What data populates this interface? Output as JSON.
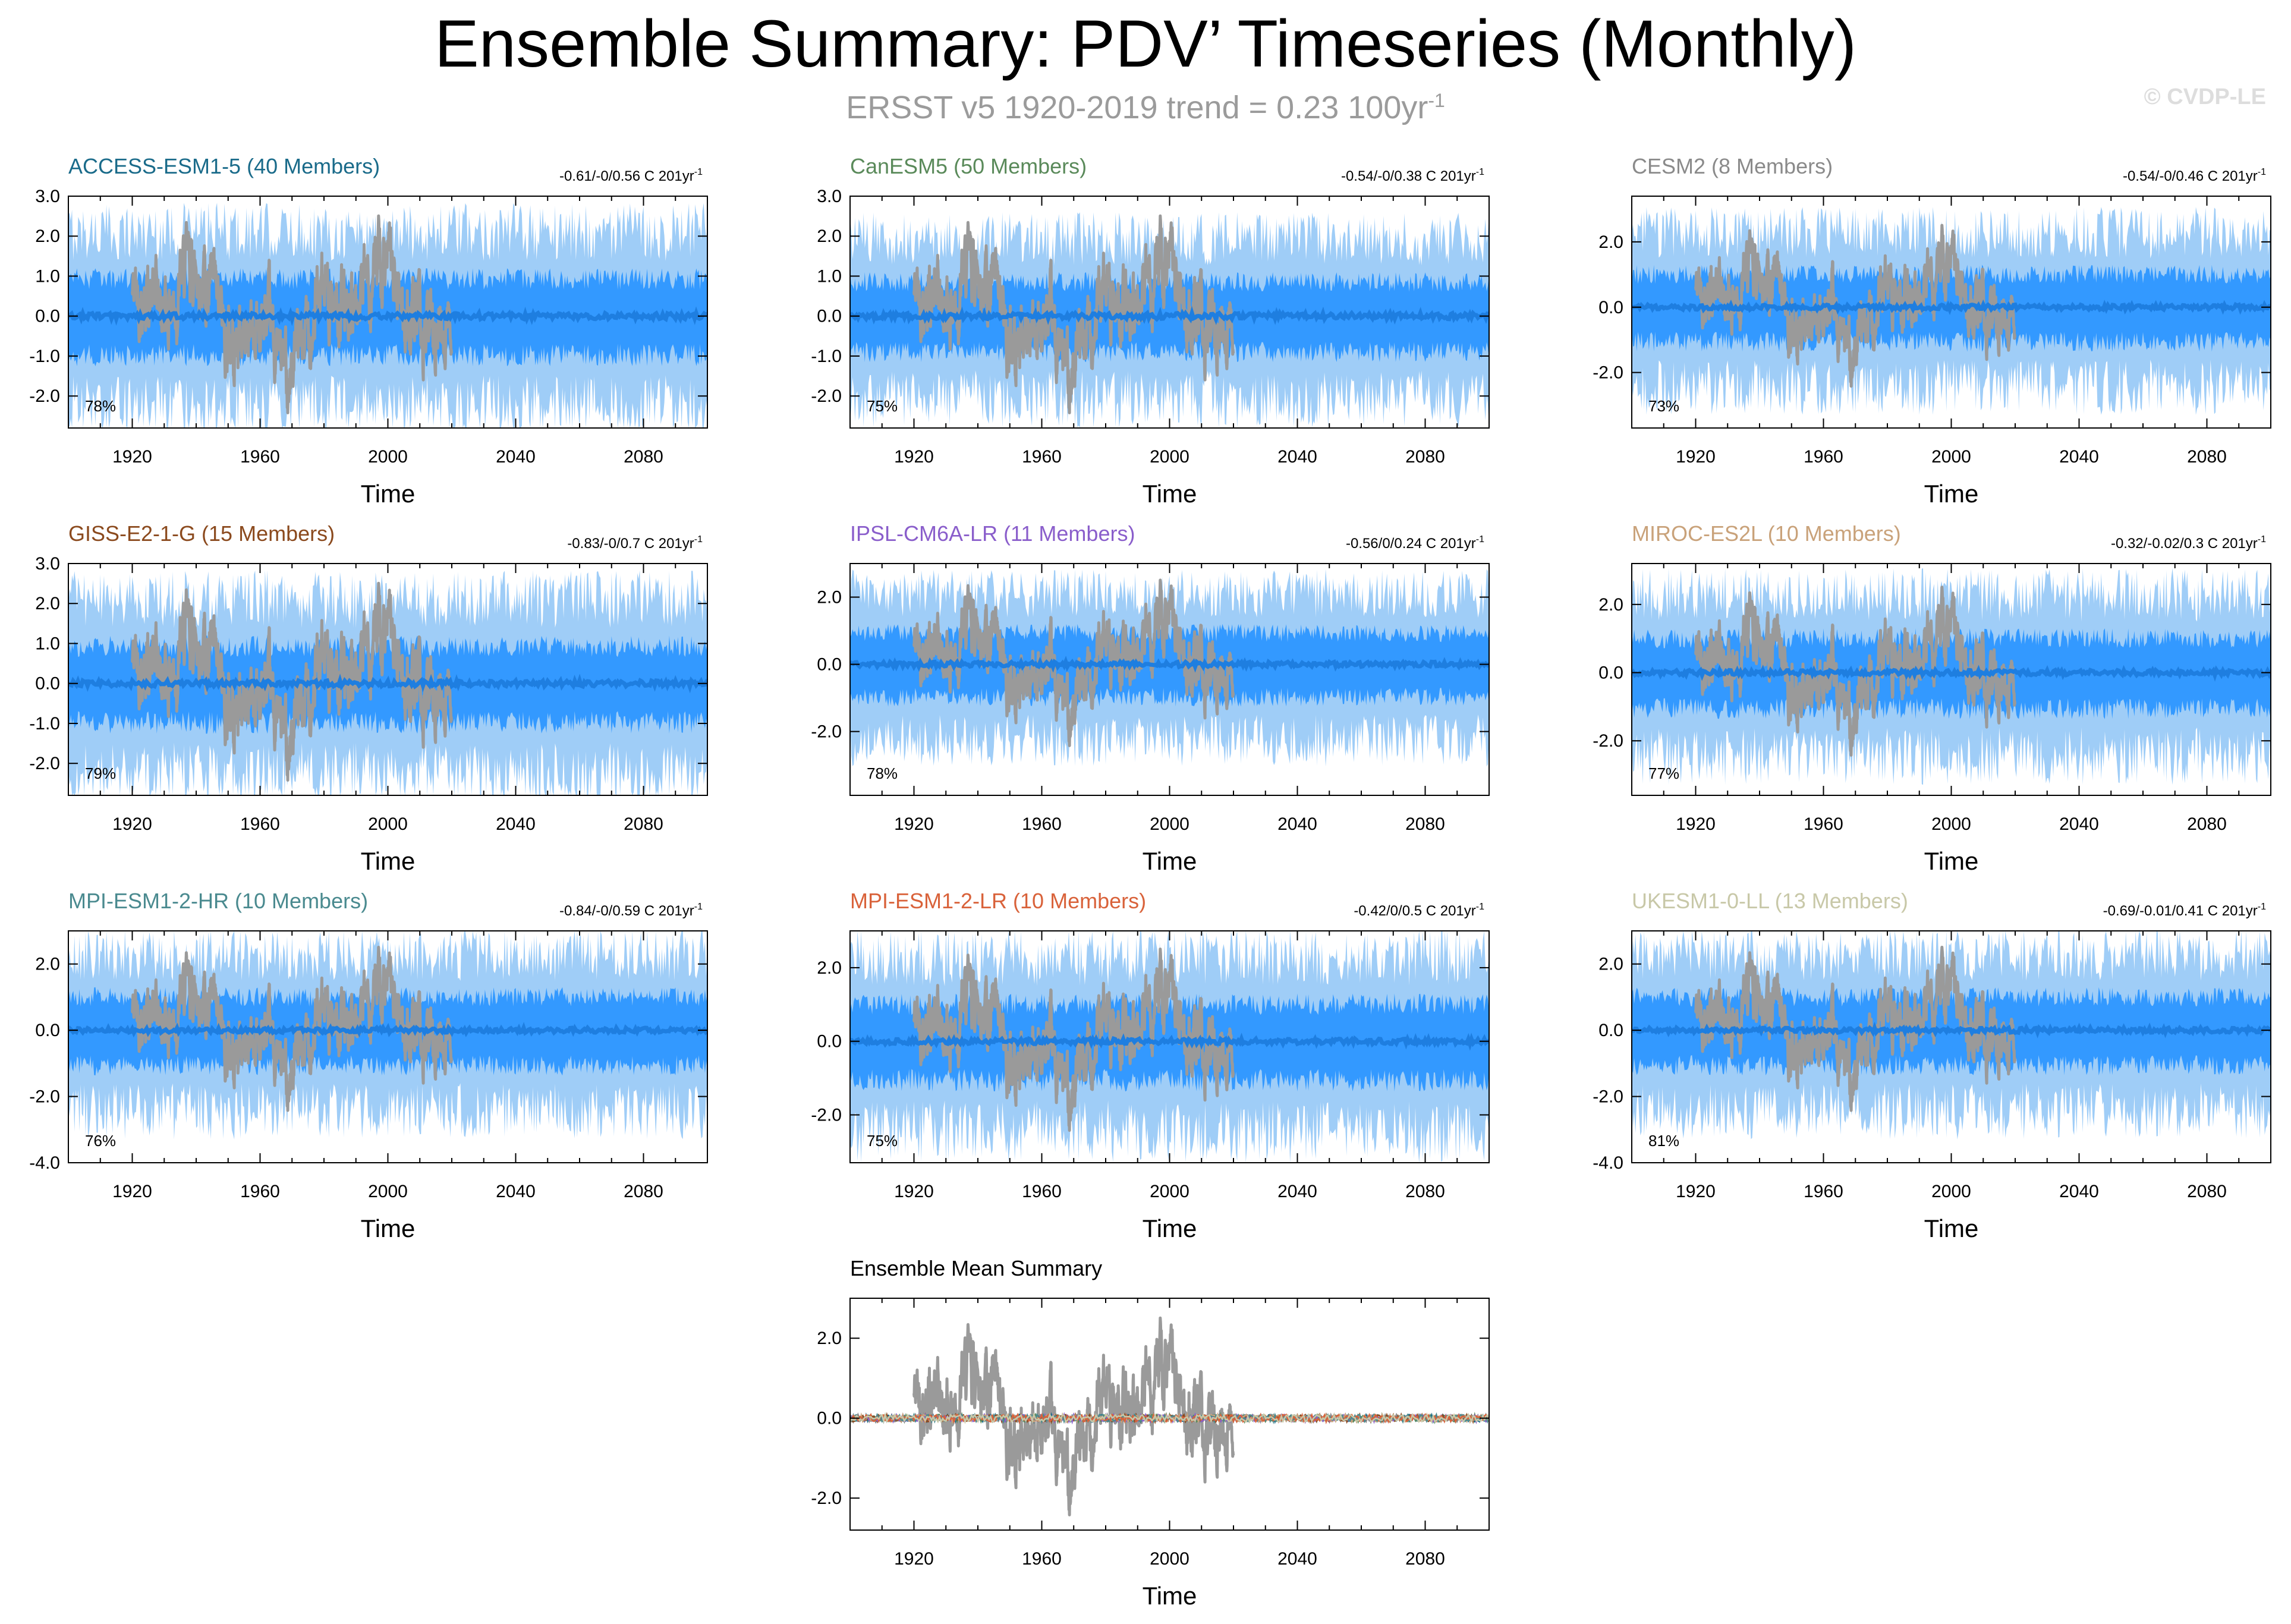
{
  "title": "Ensemble Summary: PDV’ Timeseries (Monthly)",
  "subtitle": {
    "text": "ERSST v5 1920-2019 trend = 0.23 100yr",
    "superscript": "-1"
  },
  "copyright": "© CVDP-LE",
  "colors": {
    "member_fill": "#3399ff",
    "member_light": "#9fcdf7",
    "ensemble_mean": "#1e7ee0",
    "observations": "#9a9a9a"
  },
  "chart_data": [
    {
      "type": "line",
      "title": "ACCESS-ESM1-5 (40 Members)",
      "title_color": "#1a6b8a",
      "range_text": "-0.61/-0/0.56 C 201yr",
      "range_superscript": "-1",
      "percent": "78%",
      "xlabel": "Time",
      "xlim": [
        1900,
        2100
      ],
      "x_ticks": [
        1920,
        1960,
        2000,
        2040,
        2080
      ],
      "ylim": [
        -2.8,
        3.0
      ],
      "y_ticks": [
        3.0,
        2.0,
        1.0,
        0.0,
        -1.0,
        -2.0
      ],
      "y_tick_labels": [
        "3.0",
        "2.0",
        "1.0",
        "0.0",
        "-1.0",
        "-2.0"
      ],
      "member_amplitude": 1.2,
      "observations": "ERSST v5 1920-2019"
    },
    {
      "type": "line",
      "title": "CanESM5 (50 Members)",
      "title_color": "#5a8a5a",
      "range_text": "-0.54/-0/0.38 C 201yr",
      "range_superscript": "-1",
      "percent": "75%",
      "xlabel": "Time",
      "xlim": [
        1900,
        2100
      ],
      "x_ticks": [
        1920,
        1960,
        2000,
        2040,
        2080
      ],
      "ylim": [
        -2.8,
        3.0
      ],
      "y_ticks": [
        3.0,
        2.0,
        1.0,
        0.0,
        -1.0,
        -2.0
      ],
      "y_tick_labels": [
        "3.0",
        "2.0",
        "1.0",
        "0.0",
        "-1.0",
        "-2.0"
      ],
      "member_amplitude": 1.1,
      "observations": "ERSST v5 1920-2019"
    },
    {
      "type": "line",
      "title": "CESM2 (8 Members)",
      "title_color": "#8a8a8a",
      "range_text": "-0.54/-0/0.46 C 201yr",
      "range_superscript": "-1",
      "percent": "73%",
      "xlabel": "Time",
      "xlim": [
        1900,
        2100
      ],
      "x_ticks": [
        1920,
        1960,
        2000,
        2040,
        2080
      ],
      "ylim": [
        -3.7,
        3.4
      ],
      "y_ticks": [
        2.0,
        0.0,
        -2.0
      ],
      "y_tick_labels": [
        "2.0",
        "0.0",
        "-2.0"
      ],
      "member_amplitude": 1.3,
      "observations": "ERSST v5 1920-2019"
    },
    {
      "type": "line",
      "title": "GISS-E2-1-G (15 Members)",
      "title_color": "#8b4a1e",
      "range_text": "-0.83/-0/0.7 C 201yr",
      "range_superscript": "-1",
      "percent": "79%",
      "xlabel": "Time",
      "xlim": [
        1900,
        2100
      ],
      "x_ticks": [
        1920,
        1960,
        2000,
        2040,
        2080
      ],
      "ylim": [
        -2.8,
        3.0
      ],
      "y_ticks": [
        3.0,
        2.0,
        1.0,
        0.0,
        -1.0,
        -2.0
      ],
      "y_tick_labels": [
        "3.0",
        "2.0",
        "1.0",
        "0.0",
        "-1.0",
        "-2.0"
      ],
      "member_amplitude": 1.2,
      "observations": "ERSST v5 1920-2019"
    },
    {
      "type": "line",
      "title": "IPSL-CM6A-LR (11 Members)",
      "title_color": "#8a5ecb",
      "range_text": "-0.56/0/0.24 C 201yr",
      "range_superscript": "-1",
      "percent": "78%",
      "xlabel": "Time",
      "xlim": [
        1900,
        2100
      ],
      "x_ticks": [
        1920,
        1960,
        2000,
        2040,
        2080
      ],
      "ylim": [
        -3.9,
        3.0
      ],
      "y_ticks": [
        2.0,
        0.0,
        -2.0
      ],
      "y_tick_labels": [
        "2.0",
        "0.0",
        "-2.0"
      ],
      "member_amplitude": 1.2,
      "observations": "ERSST v5 1920-2019"
    },
    {
      "type": "line",
      "title": "MIROC-ES2L (10 Members)",
      "title_color": "#c9a27a",
      "range_text": "-0.32/-0.02/0.3 C 201yr",
      "range_superscript": "-1",
      "percent": "77%",
      "xlabel": "Time",
      "xlim": [
        1900,
        2100
      ],
      "x_ticks": [
        1920,
        1960,
        2000,
        2040,
        2080
      ],
      "ylim": [
        -3.6,
        3.2
      ],
      "y_ticks": [
        2.0,
        0.0,
        -2.0
      ],
      "y_tick_labels": [
        "2.0",
        "0.0",
        "-2.0"
      ],
      "member_amplitude": 1.3,
      "observations": "ERSST v5 1920-2019"
    },
    {
      "type": "line",
      "title": "MPI-ESM1-2-HR (10 Members)",
      "title_color": "#4a8a8f",
      "range_text": "-0.84/-0/0.59 C 201yr",
      "range_superscript": "-1",
      "percent": "76%",
      "xlabel": "Time",
      "xlim": [
        1900,
        2100
      ],
      "x_ticks": [
        1920,
        1960,
        2000,
        2040,
        2080
      ],
      "ylim": [
        -4.0,
        3.0
      ],
      "y_ticks": [
        2.0,
        0.0,
        -2.0,
        -4.0
      ],
      "y_tick_labels": [
        "2.0",
        "0.0",
        "-2.0",
        "-4.0"
      ],
      "member_amplitude": 1.3,
      "observations": "ERSST v5 1920-2019"
    },
    {
      "type": "line",
      "title": "MPI-ESM1-2-LR (10 Members)",
      "title_color": "#d9623a",
      "range_text": "-0.42/0/0.5 C 201yr",
      "range_superscript": "-1",
      "percent": "75%",
      "xlabel": "Time",
      "xlim": [
        1900,
        2100
      ],
      "x_ticks": [
        1920,
        1960,
        2000,
        2040,
        2080
      ],
      "ylim": [
        -3.3,
        3.0
      ],
      "y_ticks": [
        2.0,
        0.0,
        -2.0
      ],
      "y_tick_labels": [
        "2.0",
        "0.0",
        "-2.0"
      ],
      "member_amplitude": 1.3,
      "observations": "ERSST v5 1920-2019"
    },
    {
      "type": "line",
      "title": "UKESM1-0-LL (13 Members)",
      "title_color": "#c8c8a8",
      "range_text": "-0.69/-0.01/0.41 C 201yr",
      "range_superscript": "-1",
      "percent": "81%",
      "xlabel": "Time",
      "xlim": [
        1900,
        2100
      ],
      "x_ticks": [
        1920,
        1960,
        2000,
        2040,
        2080
      ],
      "ylim": [
        -4.0,
        3.0
      ],
      "y_ticks": [
        2.0,
        0.0,
        -2.0,
        -4.0
      ],
      "y_tick_labels": [
        "2.0",
        "0.0",
        "-2.0",
        "-4.0"
      ],
      "member_amplitude": 1.3,
      "observations": "ERSST v5 1920-2019"
    },
    {
      "type": "line",
      "title": "Ensemble Mean Summary",
      "title_color": "#000000",
      "xlabel": "Time",
      "xlim": [
        1900,
        2100
      ],
      "x_ticks": [
        1920,
        1960,
        2000,
        2040,
        2080
      ],
      "ylim": [
        -2.8,
        3.0
      ],
      "y_ticks": [
        2.0,
        0.0,
        -2.0
      ],
      "y_tick_labels": [
        "2.0",
        "0.0",
        "-2.0"
      ],
      "member_amplitude": 0.05,
      "ensemble_mean_only": true,
      "mean_line_colors": [
        "#1a6b8a",
        "#5a8a5a",
        "#8a8a8a",
        "#8b4a1e",
        "#8a5ecb",
        "#c9a27a",
        "#4a8a8f",
        "#d9623a",
        "#c8c8a8"
      ],
      "observations": "ERSST v5 1920-2019"
    }
  ]
}
